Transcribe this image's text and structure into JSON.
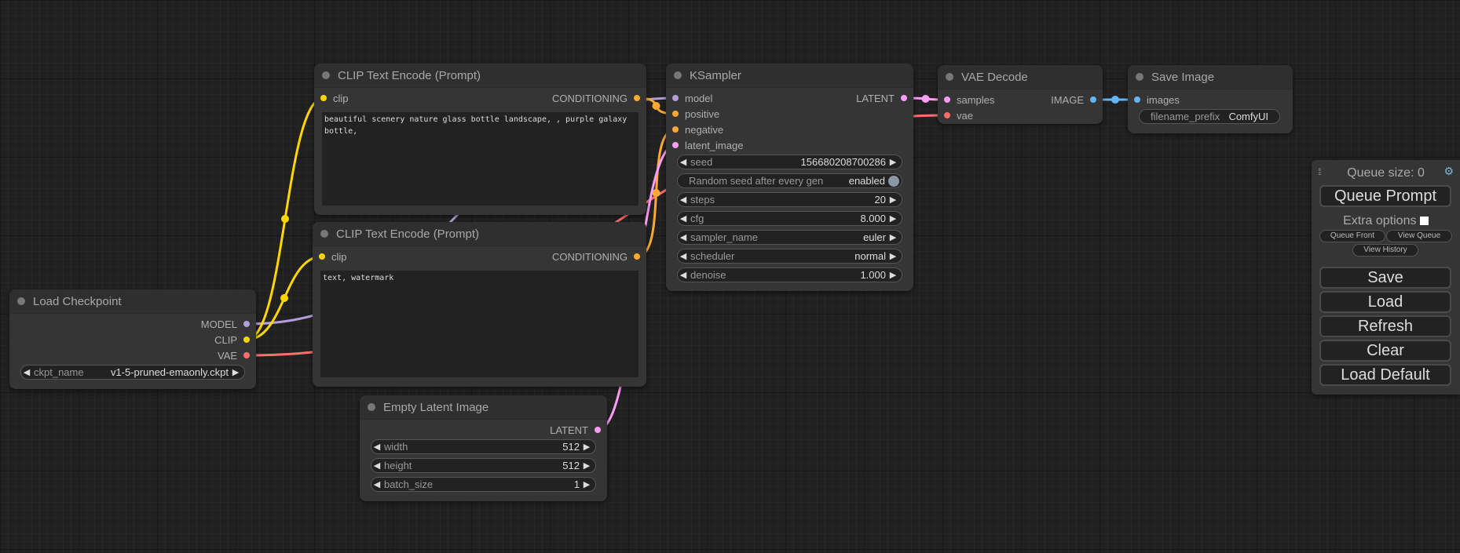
{
  "colors": {
    "MODEL": "#b39ddb",
    "CLIP": "#ffd500",
    "VAE": "#ff6e6e",
    "CONDITIONING": "#ffa931",
    "LATENT": "#ff9cf9",
    "IMAGE": "#64b5f6"
  },
  "nodes": [
    {
      "id": "ckpt",
      "title": "Load Checkpoint",
      "inputs": [],
      "outputs": [
        {
          "name": "MODEL",
          "type": "MODEL"
        },
        {
          "name": "CLIP",
          "type": "CLIP"
        },
        {
          "name": "VAE",
          "type": "VAE"
        }
      ],
      "widgets": [
        {
          "label": "ckpt_name",
          "value": "v1-5-pruned-emaonly.ckpt"
        }
      ]
    },
    {
      "id": "clip1",
      "title": "CLIP Text Encode (Prompt)",
      "inputs": [
        {
          "name": "clip",
          "type": "CLIP"
        }
      ],
      "outputs": [
        {
          "name": "CONDITIONING",
          "type": "CONDITIONING"
        }
      ],
      "text": "beautiful scenery nature glass bottle landscape, , purple galaxy bottle,"
    },
    {
      "id": "clip2",
      "title": "CLIP Text Encode (Prompt)",
      "inputs": [
        {
          "name": "clip",
          "type": "CLIP"
        }
      ],
      "outputs": [
        {
          "name": "CONDITIONING",
          "type": "CONDITIONING"
        }
      ],
      "text": "text, watermark"
    },
    {
      "id": "latent",
      "title": "Empty Latent Image",
      "inputs": [],
      "outputs": [
        {
          "name": "LATENT",
          "type": "LATENT"
        }
      ],
      "widgets": [
        {
          "label": "width",
          "value": "512"
        },
        {
          "label": "height",
          "value": "512"
        },
        {
          "label": "batch_size",
          "value": "1"
        }
      ]
    },
    {
      "id": "ksampler",
      "title": "KSampler",
      "inputs": [
        {
          "name": "model",
          "type": "MODEL"
        },
        {
          "name": "positive",
          "type": "CONDITIONING"
        },
        {
          "name": "negative",
          "type": "CONDITIONING"
        },
        {
          "name": "latent_image",
          "type": "LATENT"
        }
      ],
      "outputs": [
        {
          "name": "LATENT",
          "type": "LATENT"
        }
      ],
      "widgets": [
        {
          "label": "seed",
          "value": "156680208700286"
        },
        {
          "label": "Random seed after every gen",
          "value": "enabled",
          "toggle": true
        },
        {
          "label": "steps",
          "value": "20"
        },
        {
          "label": "cfg",
          "value": "8.000"
        },
        {
          "label": "sampler_name",
          "value": "euler"
        },
        {
          "label": "scheduler",
          "value": "normal"
        },
        {
          "label": "denoise",
          "value": "1.000"
        }
      ]
    },
    {
      "id": "vae",
      "title": "VAE Decode",
      "inputs": [
        {
          "name": "samples",
          "type": "LATENT"
        },
        {
          "name": "vae",
          "type": "VAE"
        }
      ],
      "outputs": [
        {
          "name": "IMAGE",
          "type": "IMAGE"
        }
      ]
    },
    {
      "id": "save",
      "title": "Save Image",
      "inputs": [
        {
          "name": "images",
          "type": "IMAGE"
        }
      ],
      "outputs": [],
      "widgets": [
        {
          "label": "filename_prefix",
          "value": "ComfyUI",
          "text": true
        }
      ]
    }
  ],
  "links": [
    [
      "ckpt",
      "o",
      0,
      "ksampler",
      "i",
      0
    ],
    [
      "ckpt",
      "o",
      1,
      "clip1",
      "i",
      0
    ],
    [
      "ckpt",
      "o",
      1,
      "clip2",
      "i",
      0
    ],
    [
      "ckpt",
      "o",
      2,
      "vae",
      "i",
      1
    ],
    [
      "clip1",
      "o",
      0,
      "ksampler",
      "i",
      1
    ],
    [
      "clip2",
      "o",
      0,
      "ksampler",
      "i",
      2
    ],
    [
      "latent",
      "o",
      0,
      "ksampler",
      "i",
      3
    ],
    [
      "ksampler",
      "o",
      0,
      "vae",
      "i",
      0
    ],
    [
      "vae",
      "o",
      0,
      "save",
      "i",
      0
    ]
  ],
  "panel": {
    "queue_size": "Queue size: 0",
    "queue_prompt": "Queue Prompt",
    "extra_options": "Extra options",
    "queue_front": "Queue Front",
    "view_queue": "View Queue",
    "view_history": "View History",
    "save": "Save",
    "load": "Load",
    "refresh": "Refresh",
    "clear": "Clear",
    "load_default": "Load Default"
  }
}
